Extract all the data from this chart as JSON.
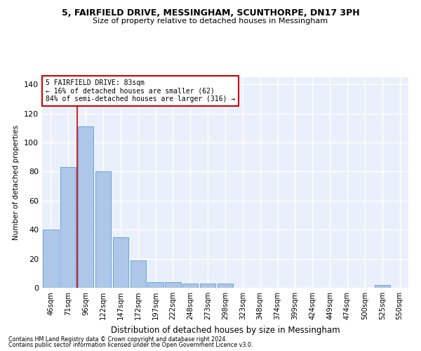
{
  "title_line1": "5, FAIRFIELD DRIVE, MESSINGHAM, SCUNTHORPE, DN17 3PH",
  "title_line2": "Size of property relative to detached houses in Messingham",
  "xlabel": "Distribution of detached houses by size in Messingham",
  "ylabel": "Number of detached properties",
  "categories": [
    "46sqm",
    "71sqm",
    "96sqm",
    "122sqm",
    "147sqm",
    "172sqm",
    "197sqm",
    "222sqm",
    "248sqm",
    "273sqm",
    "298sqm",
    "323sqm",
    "348sqm",
    "374sqm",
    "399sqm",
    "424sqm",
    "449sqm",
    "474sqm",
    "500sqm",
    "525sqm",
    "550sqm"
  ],
  "values": [
    40,
    83,
    111,
    80,
    35,
    19,
    4,
    4,
    3,
    3,
    3,
    0,
    0,
    0,
    0,
    0,
    0,
    0,
    0,
    2,
    0
  ],
  "bar_color": "#aec6e8",
  "bar_edge_color": "#5b9bd5",
  "annotation_text_line1": "5 FAIRFIELD DRIVE: 83sqm",
  "annotation_text_line2": "← 16% of detached houses are smaller (62)",
  "annotation_text_line3": "84% of semi-detached houses are larger (316) →",
  "annotation_box_facecolor": "#ffffff",
  "annotation_box_edgecolor": "#cc0000",
  "vline_color": "#cc0000",
  "vline_x": 1.5,
  "ylim": [
    0,
    145
  ],
  "yticks": [
    0,
    20,
    40,
    60,
    80,
    100,
    120,
    140
  ],
  "background_color": "#eaf0fb",
  "grid_color": "#ffffff",
  "footer_line1": "Contains HM Land Registry data © Crown copyright and database right 2024.",
  "footer_line2": "Contains public sector information licensed under the Open Government Licence v3.0."
}
